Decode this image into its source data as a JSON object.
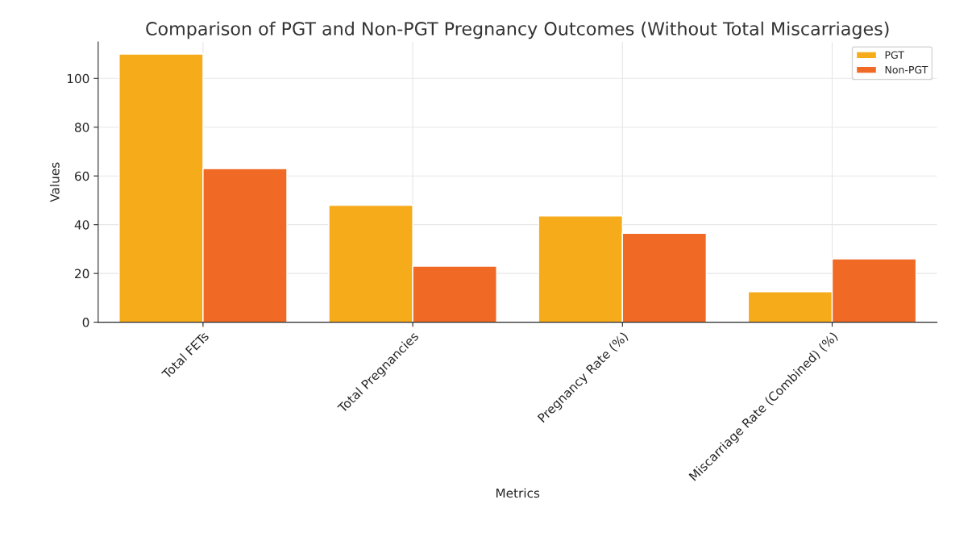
{
  "chart_data": {
    "type": "bar",
    "title": "Comparison of PGT and Non-PGT Pregnancy Outcomes (Without Total Miscarriages)",
    "xlabel": "Metrics",
    "ylabel": "Values",
    "categories": [
      "Total FETs",
      "Total Pregnancies",
      "Pregnancy Rate (%)",
      "Miscarriage Rate (Combined) (%)"
    ],
    "series": [
      {
        "name": "PGT",
        "color": "#f6ab1b",
        "values": [
          110,
          48,
          43.6,
          12.5
        ]
      },
      {
        "name": "Non-PGT",
        "color": "#f06a25",
        "values": [
          63,
          23,
          36.5,
          26
        ]
      }
    ],
    "ylim": [
      0,
      115
    ],
    "yticks": [
      0,
      20,
      40,
      60,
      80,
      100
    ],
    "grid": true,
    "legend": "top right"
  }
}
